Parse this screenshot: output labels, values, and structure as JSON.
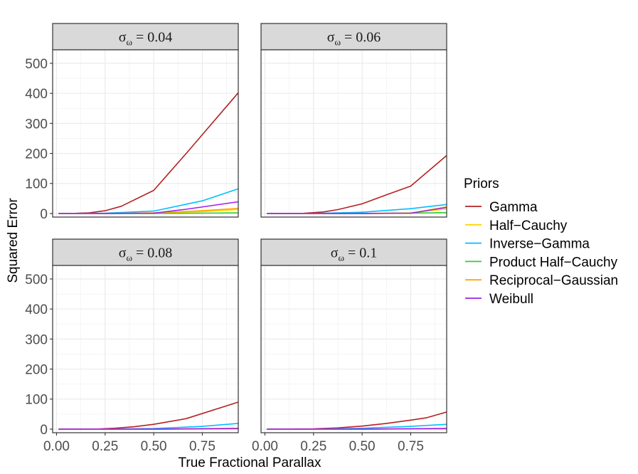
{
  "chart_data": {
    "type": "line",
    "xlabel": "True Fractional Parallax",
    "ylabel": "Squared Error",
    "xlim": [
      -0.02,
      0.935
    ],
    "ylim": [
      -12,
      545
    ],
    "x_ticks": [
      0.0,
      0.25,
      0.5,
      0.75
    ],
    "x_tick_labels": [
      "0.00",
      "0.25",
      "0.50",
      "0.75"
    ],
    "y_ticks": [
      0,
      100,
      200,
      300,
      400,
      500
    ],
    "y_tick_labels": [
      "0",
      "100",
      "200",
      "300",
      "400",
      "500"
    ],
    "grid": true,
    "legend": {
      "title": "Priors",
      "position": "right",
      "entries": [
        {
          "name": "Gamma",
          "color": "#b22222"
        },
        {
          "name": "Half−Cauchy",
          "color": "#ffd700"
        },
        {
          "name": "Inverse−Gamma",
          "color": "#00bfff"
        },
        {
          "name": "Product Half−Cauchy",
          "color": "#32cd32"
        },
        {
          "name": "Reciprocal−Gaussian",
          "color": "#ffa500"
        },
        {
          "name": "Weibull",
          "color": "#a020f0"
        }
      ]
    },
    "panels": [
      {
        "strip": {
          "main": "σ",
          "sub": "ω",
          "rest": " = 0.04"
        },
        "series": [
          {
            "name": "Gamma",
            "points": [
              [
                0.01,
                0
              ],
              [
                0.1,
                0.5
              ],
              [
                0.167,
                2
              ],
              [
                0.25,
                9
              ],
              [
                0.333,
                24
              ],
              [
                0.5,
                77
              ],
              [
                0.667,
                200
              ],
              [
                0.935,
                402
              ]
            ]
          },
          {
            "name": "Half−Cauchy",
            "points": [
              [
                0.01,
                0
              ],
              [
                0.25,
                0
              ],
              [
                0.5,
                1
              ],
              [
                0.75,
                6
              ],
              [
                0.935,
                13
              ]
            ]
          },
          {
            "name": "Inverse−Gamma",
            "points": [
              [
                0.01,
                0
              ],
              [
                0.25,
                1
              ],
              [
                0.5,
                8
              ],
              [
                0.75,
                42
              ],
              [
                0.935,
                82
              ]
            ]
          },
          {
            "name": "Product Half−Cauchy",
            "points": [
              [
                0.01,
                0
              ],
              [
                0.25,
                0
              ],
              [
                0.5,
                0
              ],
              [
                0.75,
                1
              ],
              [
                0.935,
                2
              ]
            ]
          },
          {
            "name": "Reciprocal−Gaussian",
            "points": [
              [
                0.01,
                0
              ],
              [
                0.25,
                0
              ],
              [
                0.5,
                2
              ],
              [
                0.75,
                9
              ],
              [
                0.935,
                17
              ]
            ]
          },
          {
            "name": "Weibull",
            "points": [
              [
                0.01,
                0
              ],
              [
                0.25,
                0
              ],
              [
                0.5,
                1
              ],
              [
                0.667,
                14
              ],
              [
                0.935,
                39
              ]
            ]
          }
        ]
      },
      {
        "strip": {
          "main": "σ",
          "sub": "ω",
          "rest": " = 0.06"
        },
        "series": [
          {
            "name": "Gamma",
            "points": [
              [
                0.01,
                0
              ],
              [
                0.2,
                0.5
              ],
              [
                0.3,
                5
              ],
              [
                0.375,
                13
              ],
              [
                0.5,
                32
              ],
              [
                0.625,
                62
              ],
              [
                0.75,
                91
              ],
              [
                0.935,
                193
              ]
            ]
          },
          {
            "name": "Half−Cauchy",
            "points": [
              [
                0.01,
                0
              ],
              [
                0.5,
                0
              ],
              [
                0.75,
                2
              ],
              [
                0.935,
                15
              ]
            ]
          },
          {
            "name": "Inverse−Gamma",
            "points": [
              [
                0.01,
                0
              ],
              [
                0.25,
                0
              ],
              [
                0.5,
                4
              ],
              [
                0.75,
                16
              ],
              [
                0.935,
                30
              ]
            ]
          },
          {
            "name": "Product Half−Cauchy",
            "points": [
              [
                0.01,
                0
              ],
              [
                0.5,
                0
              ],
              [
                0.75,
                1
              ],
              [
                0.935,
                3
              ]
            ]
          },
          {
            "name": "Reciprocal−Gaussian",
            "points": [
              [
                0.01,
                0
              ],
              [
                0.5,
                0
              ],
              [
                0.75,
                1
              ],
              [
                0.935,
                22
              ]
            ]
          },
          {
            "name": "Weibull",
            "points": [
              [
                0.01,
                0
              ],
              [
                0.5,
                0
              ],
              [
                0.75,
                1
              ],
              [
                0.935,
                20
              ]
            ]
          }
        ]
      },
      {
        "strip": {
          "main": "σ",
          "sub": "ω",
          "rest": " = 0.08"
        },
        "series": [
          {
            "name": "Gamma",
            "points": [
              [
                0.01,
                0
              ],
              [
                0.2,
                0
              ],
              [
                0.3,
                3
              ],
              [
                0.4,
                8
              ],
              [
                0.5,
                16
              ],
              [
                0.667,
                35
              ],
              [
                0.935,
                90
              ]
            ]
          },
          {
            "name": "Half−Cauchy",
            "points": [
              [
                0.01,
                0
              ],
              [
                0.5,
                0
              ],
              [
                0.935,
                3
              ]
            ]
          },
          {
            "name": "Inverse−Gamma",
            "points": [
              [
                0.01,
                0
              ],
              [
                0.25,
                0
              ],
              [
                0.5,
                2
              ],
              [
                0.75,
                9
              ],
              [
                0.935,
                19
              ]
            ]
          },
          {
            "name": "Product Half−Cauchy",
            "points": [
              [
                0.01,
                0
              ],
              [
                0.5,
                0
              ],
              [
                0.935,
                1
              ]
            ]
          },
          {
            "name": "Reciprocal−Gaussian",
            "points": [
              [
                0.01,
                0
              ],
              [
                0.5,
                0
              ],
              [
                0.935,
                2
              ]
            ]
          },
          {
            "name": "Weibull",
            "points": [
              [
                0.01,
                0
              ],
              [
                0.5,
                0
              ],
              [
                0.935,
                2
              ]
            ]
          }
        ]
      },
      {
        "strip": {
          "main": "σ",
          "sub": "ω",
          "rest": " = 0.1"
        },
        "series": [
          {
            "name": "Gamma",
            "points": [
              [
                0.01,
                0
              ],
              [
                0.25,
                1
              ],
              [
                0.375,
                4
              ],
              [
                0.5,
                10
              ],
              [
                0.625,
                19
              ],
              [
                0.75,
                30
              ],
              [
                0.833,
                38
              ],
              [
                0.935,
                57
              ]
            ]
          },
          {
            "name": "Half−Cauchy",
            "points": [
              [
                0.01,
                0
              ],
              [
                0.5,
                0
              ],
              [
                0.935,
                2
              ]
            ]
          },
          {
            "name": "Inverse−Gamma",
            "points": [
              [
                0.01,
                0
              ],
              [
                0.25,
                0
              ],
              [
                0.5,
                3
              ],
              [
                0.75,
                9
              ],
              [
                0.935,
                16
              ]
            ]
          },
          {
            "name": "Product Half−Cauchy",
            "points": [
              [
                0.01,
                0
              ],
              [
                0.5,
                0
              ],
              [
                0.935,
                1
              ]
            ]
          },
          {
            "name": "Reciprocal−Gaussian",
            "points": [
              [
                0.01,
                0
              ],
              [
                0.5,
                0
              ],
              [
                0.935,
                1
              ]
            ]
          },
          {
            "name": "Weibull",
            "points": [
              [
                0.01,
                0
              ],
              [
                0.5,
                0
              ],
              [
                0.935,
                2
              ]
            ]
          }
        ]
      }
    ]
  }
}
